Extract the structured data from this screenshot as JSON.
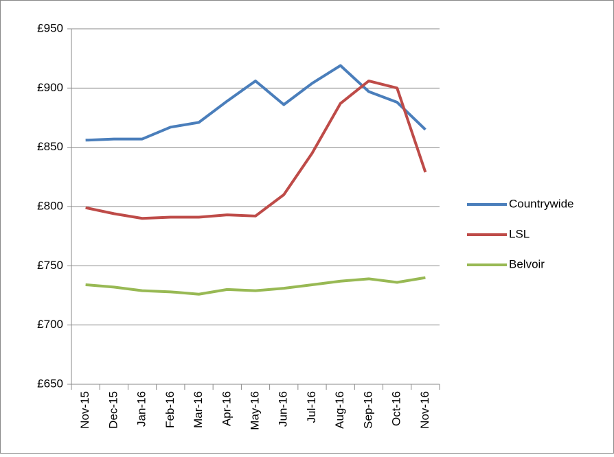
{
  "chart_data": {
    "type": "line",
    "categories": [
      "Nov-15",
      "Dec-15",
      "Jan-16",
      "Feb-16",
      "Mar-16",
      "Apr-16",
      "May-16",
      "Jun-16",
      "Jul-16",
      "Aug-16",
      "Sep-16",
      "Oct-16",
      "Nov-16"
    ],
    "series": [
      {
        "name": "Countrywide",
        "color": "#4a7ebb",
        "values": [
          856,
          857,
          857,
          867,
          871,
          889,
          906,
          886,
          904,
          919,
          897,
          888,
          865
        ]
      },
      {
        "name": "LSL",
        "color": "#be4b48",
        "values": [
          799,
          794,
          790,
          791,
          791,
          793,
          792,
          810,
          845,
          887,
          906,
          900,
          829
        ]
      },
      {
        "name": "Belvoir",
        "color": "#98b954",
        "values": [
          734,
          732,
          729,
          728,
          726,
          730,
          729,
          731,
          734,
          737,
          739,
          736,
          740
        ]
      }
    ],
    "ylim": [
      650,
      950
    ],
    "yticks": [
      {
        "value": 650,
        "label": "£650"
      },
      {
        "value": 700,
        "label": "£700"
      },
      {
        "value": 750,
        "label": "£750"
      },
      {
        "value": 800,
        "label": "£800"
      },
      {
        "value": 850,
        "label": "£850"
      },
      {
        "value": 900,
        "label": "£900"
      },
      {
        "value": 950,
        "label": "£950"
      }
    ],
    "grid": true,
    "legend": "right"
  }
}
